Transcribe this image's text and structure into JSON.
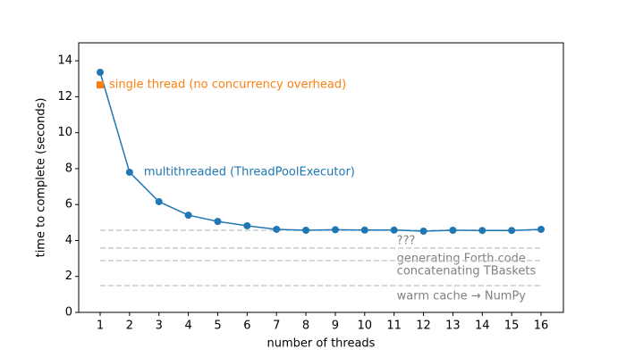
{
  "chart_data": {
    "type": "line",
    "x_label": "number of threads",
    "y_label": "time to complete (seconds)",
    "x": [
      1,
      2,
      3,
      4,
      5,
      6,
      7,
      8,
      9,
      10,
      11,
      12,
      13,
      14,
      15,
      16
    ],
    "series": [
      {
        "name": "multithreaded (ThreadPoolExecutor)",
        "color": "#1f77b4",
        "marker": "circle",
        "values": [
          13.36,
          7.8,
          6.16,
          5.41,
          5.06,
          4.82,
          4.62,
          4.57,
          4.6,
          4.58,
          4.58,
          4.52,
          4.57,
          4.56,
          4.56,
          4.62
        ]
      },
      {
        "name": "single thread (no concurrency overhead)",
        "color": "#ff7f0e",
        "marker": "square",
        "x": [
          1
        ],
        "values": [
          12.66
        ]
      }
    ],
    "reference_lines": [
      {
        "label": "???",
        "value": 4.57
      },
      {
        "label": "generating Forth code",
        "value": 3.58
      },
      {
        "label": "concatenating TBaskets",
        "value": 2.88
      },
      {
        "label": "warm cache → NumPy",
        "value": 1.49
      }
    ],
    "reference_color": "#cccccc",
    "reference_label_color": "#808080",
    "xlim": [
      0.27,
      16.76
    ],
    "ylim": [
      0,
      15
    ],
    "xticks": [
      1,
      2,
      3,
      4,
      5,
      6,
      7,
      8,
      9,
      10,
      11,
      12,
      13,
      14,
      15,
      16
    ],
    "yticks": [
      0,
      2,
      4,
      6,
      8,
      10,
      12,
      14
    ]
  }
}
